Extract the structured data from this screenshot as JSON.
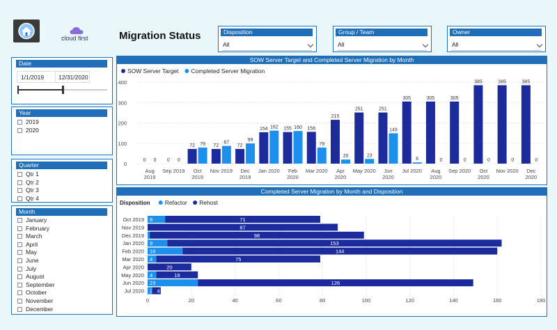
{
  "header": {
    "title": "Migration Status",
    "brand": "cloud first"
  },
  "filters": {
    "disposition": {
      "label": "Disposition",
      "value": "All"
    },
    "group_team": {
      "label": "Group / Team",
      "value": "All"
    },
    "owner": {
      "label": "Owner",
      "value": "All"
    }
  },
  "date": {
    "label": "Date",
    "start": "1/1/2019",
    "end": "12/31/2020",
    "slider_end_fraction": 0.5
  },
  "year": {
    "label": "Year",
    "options": [
      "2019",
      "2020"
    ]
  },
  "quarter": {
    "label": "Quarter",
    "options": [
      "Qtr 1",
      "Qtr 2",
      "Qtr 3",
      "Qtr 4"
    ]
  },
  "month": {
    "label": "Month",
    "options": [
      "January",
      "February",
      "March",
      "April",
      "May",
      "June",
      "July",
      "August",
      "September",
      "October",
      "November",
      "December"
    ]
  },
  "colors": {
    "dark": "#1c2b9c",
    "light": "#1d8fec",
    "accent": "#1f6fb8"
  },
  "chart_data": [
    {
      "type": "bar",
      "title": "SOW Server Target and Completed Server Migration by Month",
      "categories": [
        "Aug 2019",
        "Sep 2019",
        "Oct 2019",
        "Nov 2019",
        "Dec 2019",
        "Jan 2020",
        "Feb 2020",
        "Mar 2020",
        "Apr 2020",
        "May 2020",
        "Jun 2020",
        "Jul 2020",
        "Aug 2020",
        "Sep 2020",
        "Oct 2020",
        "Nov 2020",
        "Dec 2020"
      ],
      "series": [
        {
          "name": "SOW Server Target",
          "values": [
            0,
            0,
            72,
            72,
            72,
            154,
            155,
            156,
            215,
            251,
            251,
            305,
            305,
            305,
            385,
            385,
            385
          ]
        },
        {
          "name": "Completed Server Migration",
          "values": [
            0,
            0,
            79,
            87,
            99,
            162,
            160,
            79,
            20,
            23,
            149,
            6,
            0,
            0,
            0,
            0,
            0
          ]
        }
      ],
      "yticks": [
        0,
        100,
        200,
        300,
        400
      ],
      "ylim": [
        0,
        400
      ],
      "legend": "top-left"
    },
    {
      "type": "bar",
      "orientation": "horizontal",
      "stacked": true,
      "title": "Completed Server Migration by Month and Disposition",
      "legend_title": "Disposition",
      "categories": [
        "Oct 2019",
        "Nov 2019",
        "Dec 2019",
        "Jan 2020",
        "Feb 2020",
        "Mar 2020",
        "Apr 2020",
        "May 2020",
        "Jun 2020",
        "Jul 2020"
      ],
      "series": [
        {
          "name": "Refactor",
          "values": [
            8,
            0,
            1,
            9,
            16,
            4,
            0,
            4,
            23,
            2
          ]
        },
        {
          "name": "Rehost",
          "values": [
            71,
            87,
            98,
            153,
            144,
            75,
            20,
            19,
            126,
            4
          ]
        }
      ],
      "xticks": [
        0,
        20,
        40,
        60,
        80,
        100,
        120,
        140,
        160,
        180
      ],
      "xlim": [
        0,
        180
      ],
      "legend": "top-left"
    }
  ]
}
